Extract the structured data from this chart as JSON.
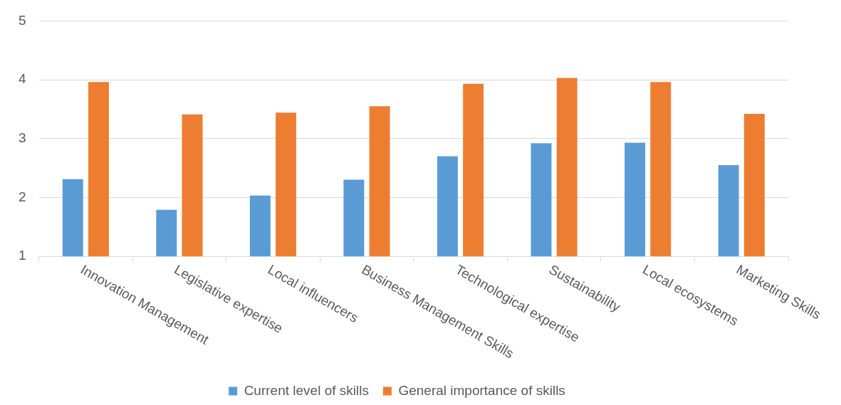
{
  "chart_data": {
    "type": "bar",
    "categories": [
      "Innovation Management",
      "Legislative expertise",
      "Local influencers",
      "Business Management Skills",
      "Technological expertise",
      "Sustainability",
      "Local ecosystems",
      "Marketing Skills"
    ],
    "series": [
      {
        "name": "Current level of skills",
        "color": "#5b9bd5",
        "values": [
          2.31,
          1.79,
          2.03,
          2.3,
          2.7,
          2.92,
          2.93,
          2.55
        ]
      },
      {
        "name": "General importance of skills",
        "color": "#ed7d31",
        "values": [
          3.96,
          3.41,
          3.44,
          3.55,
          3.93,
          4.03,
          3.96,
          3.42
        ]
      }
    ],
    "ylim": [
      1,
      5
    ],
    "yticks": [
      1,
      2,
      3,
      4,
      5
    ],
    "grid": "y",
    "legend": "bottom"
  }
}
